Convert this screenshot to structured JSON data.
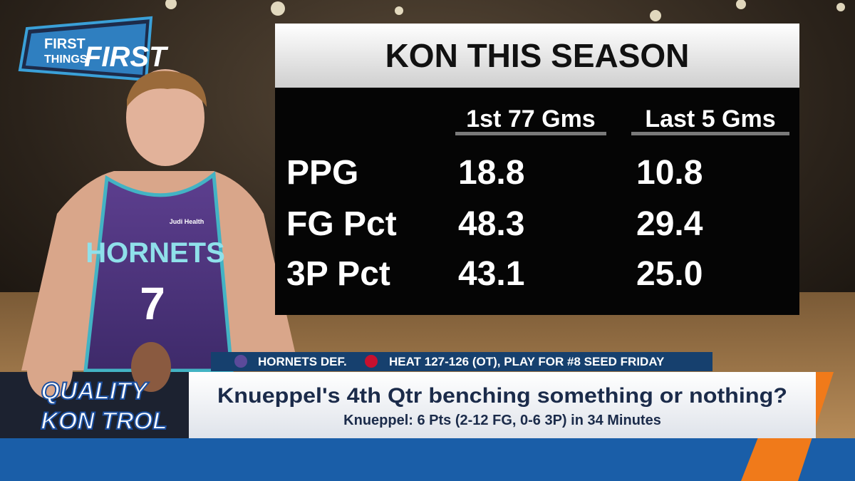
{
  "logo": {
    "line1": "FIRST",
    "line2": "THINGS",
    "line3": "FIRST"
  },
  "player": {
    "jersey_name": "HORNETS",
    "jersey_number": "7",
    "sponsor": "Judi Health"
  },
  "table": {
    "title": "KON THIS SEASON",
    "columns": [
      "1st 77 Gms",
      "Last 5 Gms"
    ],
    "rows": [
      [
        "PPG",
        "18.8",
        "10.8"
      ],
      [
        "FG Pct",
        "48.3",
        "29.4"
      ],
      [
        "3P Pct",
        "43.1",
        "25.0"
      ]
    ]
  },
  "ticker": {
    "team": "HORNETS DEF.",
    "text": "HEAT 127-126 (OT), PLAY FOR #8 SEED FRIDAY"
  },
  "badge": {
    "line1": "QUALITY",
    "line2": "KON TROL"
  },
  "lower_third": {
    "headline": "Knueppel's 4th Qtr benching something or nothing?",
    "subline": "Knueppel: 6 Pts (2-12 FG, 0-6 3P) in 34 Minutes"
  }
}
